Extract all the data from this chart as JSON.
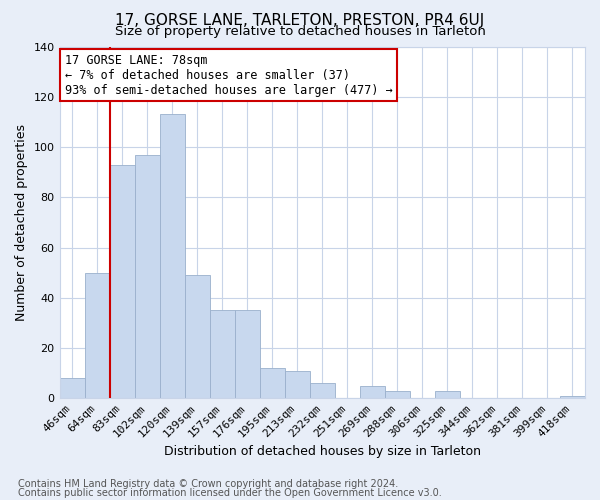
{
  "title": "17, GORSE LANE, TARLETON, PRESTON, PR4 6UJ",
  "subtitle": "Size of property relative to detached houses in Tarleton",
  "xlabel": "Distribution of detached houses by size in Tarleton",
  "ylabel": "Number of detached properties",
  "bar_labels": [
    "46sqm",
    "64sqm",
    "83sqm",
    "102sqm",
    "120sqm",
    "139sqm",
    "157sqm",
    "176sqm",
    "195sqm",
    "213sqm",
    "232sqm",
    "251sqm",
    "269sqm",
    "288sqm",
    "306sqm",
    "325sqm",
    "344sqm",
    "362sqm",
    "381sqm",
    "399sqm",
    "418sqm"
  ],
  "bar_values": [
    8,
    50,
    93,
    97,
    113,
    49,
    35,
    35,
    12,
    11,
    6,
    0,
    5,
    3,
    0,
    3,
    0,
    0,
    0,
    0,
    1
  ],
  "bar_color": "#c8d8ee",
  "bar_edge_color": "#9ab0cc",
  "ylim": [
    0,
    140
  ],
  "yticks": [
    0,
    20,
    40,
    60,
    80,
    100,
    120,
    140
  ],
  "vline_x_bar_index": 2,
  "vline_color": "#cc0000",
  "annotation_title": "17 GORSE LANE: 78sqm",
  "annotation_line1": "← 7% of detached houses are smaller (37)",
  "annotation_line2": "93% of semi-detached houses are larger (477) →",
  "footer1": "Contains HM Land Registry data © Crown copyright and database right 2024.",
  "footer2": "Contains public sector information licensed under the Open Government Licence v3.0.",
  "background_color": "#e8eef8",
  "plot_background": "#ffffff",
  "grid_color": "#c8d4e8",
  "title_fontsize": 11,
  "subtitle_fontsize": 9.5,
  "axis_label_fontsize": 9,
  "tick_fontsize": 8,
  "footer_fontsize": 7,
  "annotation_fontsize": 8.5
}
